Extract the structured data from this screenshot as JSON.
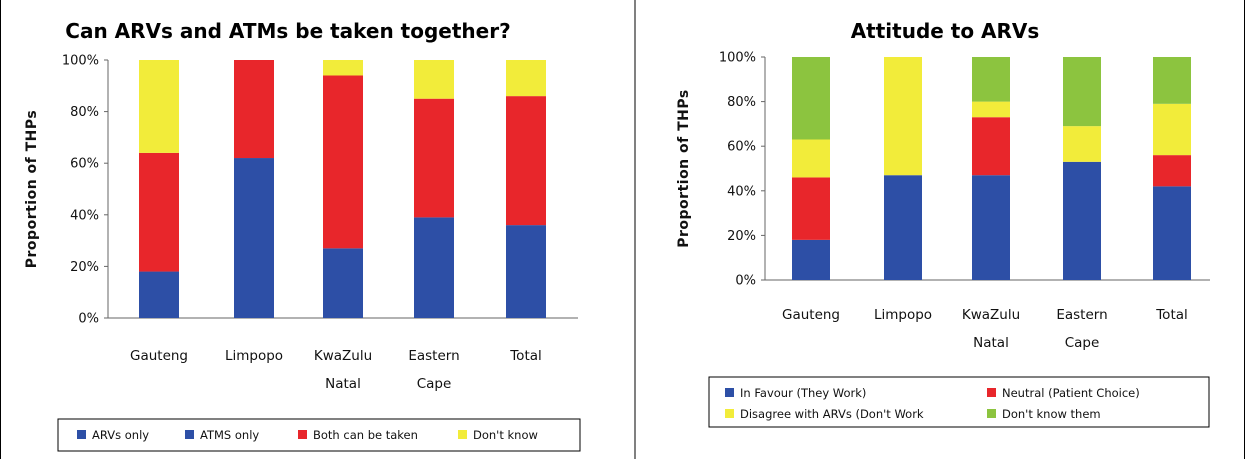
{
  "chart_data": [
    {
      "type": "bar",
      "stacked": true,
      "percent": true,
      "title": "Can ARVs and ATMs be taken together?",
      "ylabel": "Proportion of THPs",
      "ylim": [
        0,
        100
      ],
      "yticks": [
        "0%",
        "20%",
        "40%",
        "60%",
        "80%",
        "100%"
      ],
      "categories": [
        [
          "Gauteng"
        ],
        [
          "Limpopo"
        ],
        [
          "KwaZulu",
          "Natal"
        ],
        [
          "Eastern",
          "Cape"
        ],
        [
          "Total"
        ]
      ],
      "grid": false,
      "legend_position": "bottom",
      "series": [
        {
          "name": "ARVs only",
          "color": "#2d4fa6",
          "values": [
            18,
            62,
            27,
            39,
            36
          ]
        },
        {
          "name": "ATMS only",
          "color": "#2d4fa6",
          "values": [
            0,
            0,
            0,
            0,
            0
          ]
        },
        {
          "name": "Both can be taken",
          "color": "#e8262b",
          "values": [
            46,
            38,
            67,
            46,
            50
          ]
        },
        {
          "name": "Don't know",
          "color": "#f2ec3a",
          "values": [
            36,
            0,
            6,
            15,
            14
          ]
        }
      ]
    },
    {
      "type": "bar",
      "stacked": true,
      "percent": true,
      "title": "Attitude to ARVs",
      "ylabel": "Proportion of THPs",
      "ylim": [
        0,
        100
      ],
      "yticks": [
        "0%",
        "20%",
        "40%",
        "60%",
        "80%",
        "100%"
      ],
      "categories": [
        [
          "Gauteng"
        ],
        [
          "Limpopo"
        ],
        [
          "KwaZulu",
          "Natal"
        ],
        [
          "Eastern",
          "Cape"
        ],
        [
          "Total"
        ]
      ],
      "grid": false,
      "legend_position": "bottom",
      "series": [
        {
          "name": "In Favour (They Work)",
          "color": "#2d4fa6",
          "values": [
            18,
            47,
            47,
            53,
            42
          ]
        },
        {
          "name": "Neutral (Patient Choice)",
          "color": "#e8262b",
          "values": [
            28,
            0,
            26,
            0,
            14
          ]
        },
        {
          "name": "Disagree with ARVs (Don't Work",
          "color": "#f2ec3a",
          "values": [
            17,
            53,
            7,
            16,
            23
          ]
        },
        {
          "name": "Don't know them",
          "color": "#8cc43f",
          "values": [
            37,
            0,
            20,
            31,
            21
          ]
        }
      ]
    }
  ]
}
